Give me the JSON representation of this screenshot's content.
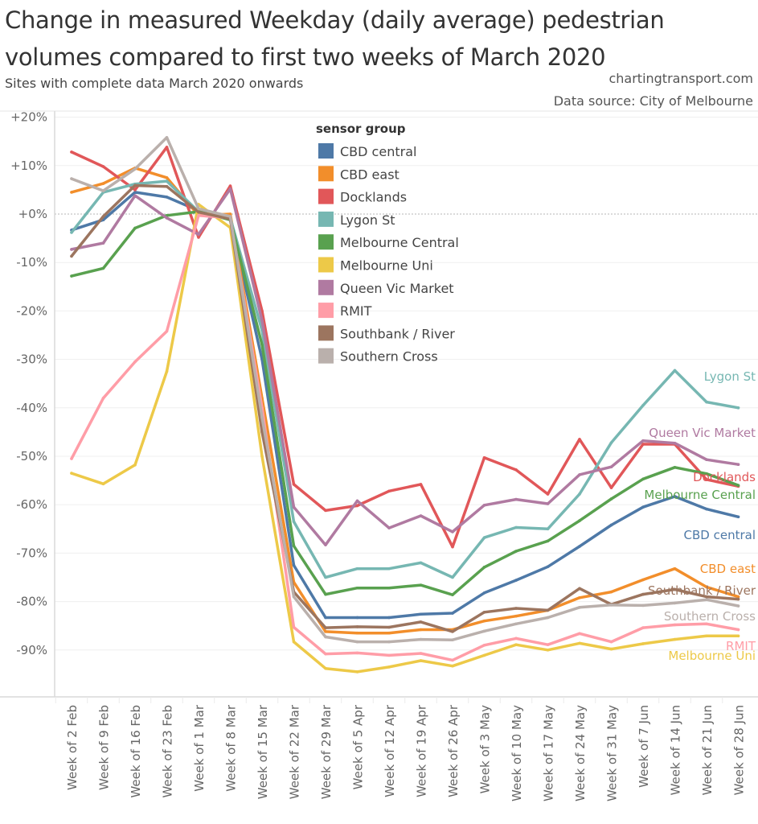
{
  "header": {
    "title_line1": "Change in measured Weekday (daily average) pedestrian",
    "title_line2": "volumes compared to first two weeks of March 2020",
    "subtitle": "Sites with complete data March 2020 onwards",
    "credit": "chartingtransport.com",
    "source": "Data source: City of Melbourne"
  },
  "chart_data": {
    "type": "line",
    "title": "Change in measured Weekday (daily average) pedestrian volumes compared to first two weeks of March 2020",
    "subtitle": "Sites with complete data March 2020 onwards",
    "xlabel": "",
    "ylabel": "",
    "ylim": [
      -100,
      20
    ],
    "yticks": [
      20,
      10,
      0,
      -10,
      -20,
      -30,
      -40,
      -50,
      -60,
      -70,
      -80,
      -90
    ],
    "ytick_labels": [
      "+20%",
      "+10%",
      "+0%",
      "-10%",
      "-20%",
      "-30%",
      "-40%",
      "-50%",
      "-60%",
      "-70%",
      "-80%",
      "-90%"
    ],
    "grid": true,
    "zero_line": "dotted",
    "legend_title": "sensor group",
    "legend_position": "top-center",
    "categories": [
      "Week of 2 Feb",
      "Week of 9 Feb",
      "Week of 16 Feb",
      "Week of 23 Feb",
      "Week of 1 Mar",
      "Week of 8 Mar",
      "Week of 15 Mar",
      "Week of 22 Mar",
      "Week of 29 Mar",
      "Week of 5 Apr",
      "Week of 12 Apr",
      "Week of 19 Apr",
      "Week of 26 Apr",
      "Week of 3 May",
      "Week of 10 May",
      "Week of 17 May",
      "Week of 24 May",
      "Week of 31 May",
      "Week of 7 Jun",
      "Week of 14 Jun",
      "Week of 21 Jun",
      "Week of 28 Jun"
    ],
    "series": [
      {
        "name": "CBD central",
        "color": "#4e79a7",
        "values": [
          -3.3,
          -1.2,
          4.5,
          3.5,
          0.7,
          -1.2,
          -30,
          -72.5,
          -83.3,
          -83.3,
          -83.3,
          -82.6,
          -82.4,
          -78.2,
          -75.6,
          -72.8,
          -68.6,
          -64.2,
          -60.5,
          -58.3,
          -60.9,
          -62.5
        ]
      },
      {
        "name": "CBD east",
        "color": "#f28e2b",
        "values": [
          4.5,
          6.3,
          9.5,
          7.5,
          -0.3,
          0,
          -38,
          -76,
          -86.2,
          -86.5,
          -86.5,
          -85.8,
          -85.8,
          -84,
          -83,
          -81.8,
          -79.2,
          -78,
          -75.5,
          -73.2,
          -77,
          -79
        ]
      },
      {
        "name": "Docklands",
        "color": "#e15759",
        "values": [
          12.8,
          9.8,
          5,
          13.8,
          -4.8,
          5.8,
          -20,
          -55.8,
          -61.2,
          -60.2,
          -57.2,
          -55.8,
          -68.7,
          -50.3,
          -52.8,
          -57.8,
          -46.5,
          -56.5,
          -47.5,
          -47.5,
          -54.8,
          -56.2
        ]
      },
      {
        "name": "Lygon St",
        "color": "#76b7b2",
        "values": [
          -3.8,
          4.5,
          6.2,
          6.8,
          0.5,
          -0.8,
          -24,
          -63.5,
          -75,
          -73.2,
          -73.2,
          -72,
          -75,
          -66.8,
          -64.7,
          -65,
          -57.8,
          -47.2,
          -39.5,
          -32.3,
          -38.8,
          -40
        ]
      },
      {
        "name": "Melbourne Central",
        "color": "#59a14f",
        "values": [
          -12.8,
          -11.2,
          -2.9,
          -0.3,
          0.5,
          -1.2,
          -27,
          -68.5,
          -78.5,
          -77.2,
          -77.2,
          -76.6,
          -78.6,
          -72.9,
          -69.6,
          -67.5,
          -63.3,
          -58.8,
          -54.7,
          -52.3,
          -53.6,
          -56
        ]
      },
      {
        "name": "Melbourne Uni",
        "color": "#edc948",
        "values": [
          -53.5,
          -55.7,
          -51.8,
          -32.5,
          2,
          -2.8,
          -50,
          -88.3,
          -93.8,
          -94.5,
          -93.5,
          -92.2,
          -93.3,
          -91.1,
          -88.9,
          -90,
          -88.6,
          -89.8,
          -88.7,
          -87.8,
          -87.1,
          -87.1
        ]
      },
      {
        "name": "Queen Vic Market",
        "color": "#b07aa1",
        "values": [
          -7.3,
          -6,
          3.8,
          -0.8,
          -4.2,
          5.2,
          -22,
          -60.5,
          -68.3,
          -59.2,
          -64.8,
          -62.3,
          -65.6,
          -60.1,
          -58.9,
          -59.8,
          -53.8,
          -52.2,
          -46.8,
          -47.3,
          -50.7,
          -51.7
        ]
      },
      {
        "name": "RMIT",
        "color": "#ff9da7",
        "values": [
          -50.5,
          -38,
          -30.5,
          -24.2,
          -0.3,
          -0.8,
          -40,
          -85.3,
          -90.8,
          -90.6,
          -91.1,
          -90.7,
          -92.1,
          -89,
          -87.6,
          -88.9,
          -86.6,
          -88.3,
          -85.4,
          -84.8,
          -84.6,
          -85.8
        ]
      },
      {
        "name": "Southbank / River",
        "color": "#9c755f",
        "values": [
          -8.7,
          -0.5,
          5.9,
          5.7,
          0.4,
          -1,
          -45,
          -78,
          -85.4,
          -85.2,
          -85.3,
          -84.2,
          -86.2,
          -82.2,
          -81.4,
          -81.8,
          -77.3,
          -80.6,
          -78.5,
          -77.5,
          -79,
          -79.5
        ]
      },
      {
        "name": "Southern Cross",
        "color": "#bab0ac",
        "values": [
          7.3,
          4.8,
          9.3,
          15.8,
          1.1,
          -0.5,
          -42,
          -79,
          -87.3,
          -88.3,
          -88.3,
          -87.8,
          -87.9,
          -86.1,
          -84.6,
          -83.3,
          -81.2,
          -80.7,
          -80.8,
          -80.3,
          -79.6,
          -80.9
        ]
      }
    ],
    "end_labels": [
      {
        "name": "Lygon St",
        "color": "#76b7b2"
      },
      {
        "name": "Queen Vic Market",
        "color": "#b07aa1"
      },
      {
        "name": "Docklands",
        "color": "#e15759"
      },
      {
        "name": "Melbourne Central",
        "color": "#59a14f"
      },
      {
        "name": "CBD central",
        "color": "#4e79a7"
      },
      {
        "name": "CBD east",
        "color": "#f28e2b"
      },
      {
        "name": "Southbank / River",
        "color": "#9c755f"
      },
      {
        "name": "Southern Cross",
        "color": "#bab0ac"
      },
      {
        "name": "RMIT",
        "color": "#ff9da7"
      },
      {
        "name": "Melbourne Uni",
        "color": "#edc948"
      }
    ]
  }
}
